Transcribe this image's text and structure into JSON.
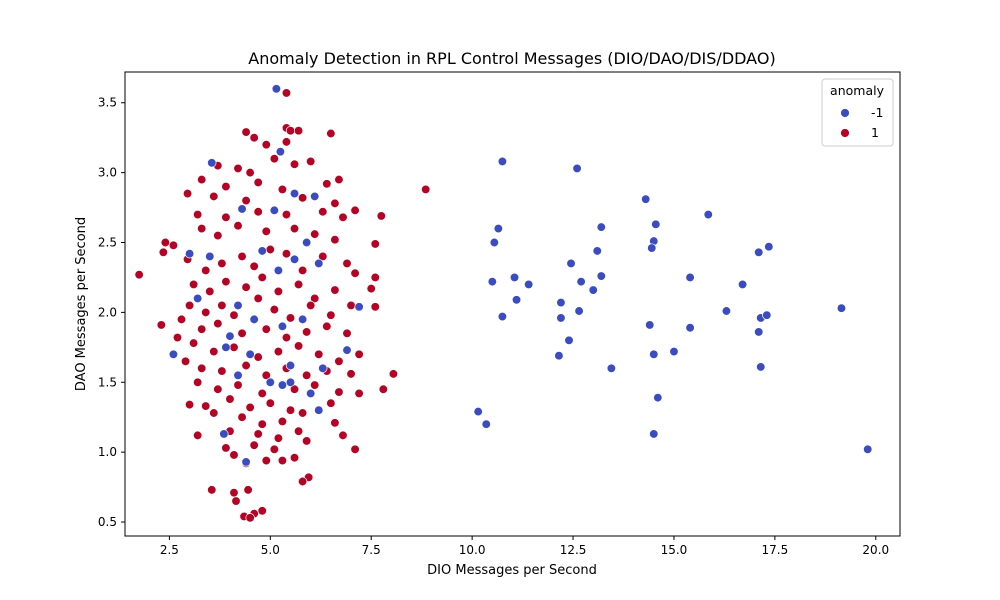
{
  "chart_data": {
    "type": "scatter",
    "title": "Anomaly Detection in RPL Control Messages (DIO/DAO/DIS/DDAO)",
    "xlabel": "DIO Messages per Second",
    "ylabel": "DAO Messages per Second",
    "xlim": [
      1.4,
      20.6
    ],
    "ylim": [
      0.4,
      3.72
    ],
    "xticks": [
      2.5,
      5.0,
      7.5,
      10.0,
      12.5,
      15.0,
      17.5,
      20.0
    ],
    "xtick_labels": [
      "2.5",
      "5.0",
      "7.5",
      "10.0",
      "12.5",
      "15.0",
      "17.5",
      "20.0"
    ],
    "yticks": [
      0.5,
      1.0,
      1.5,
      2.0,
      2.5,
      3.0,
      3.5
    ],
    "ytick_labels": [
      "0.5",
      "1.0",
      "1.5",
      "2.0",
      "2.5",
      "3.0",
      "3.5"
    ],
    "grid": false,
    "legend": {
      "title": "anomaly",
      "placement": "top-right"
    },
    "series": [
      {
        "name": "-1",
        "color": "#3b4cc0",
        "points": [
          [
            5.15,
            3.6
          ],
          [
            3.55,
            3.07
          ],
          [
            5.25,
            3.15
          ],
          [
            4.3,
            2.74
          ],
          [
            5.1,
            2.73
          ],
          [
            5.6,
            2.85
          ],
          [
            6.1,
            2.83
          ],
          [
            3.0,
            2.42
          ],
          [
            3.5,
            2.4
          ],
          [
            4.8,
            2.44
          ],
          [
            5.2,
            2.3
          ],
          [
            5.6,
            2.38
          ],
          [
            5.9,
            2.5
          ],
          [
            6.2,
            2.35
          ],
          [
            3.2,
            2.1
          ],
          [
            4.2,
            2.05
          ],
          [
            4.6,
            1.95
          ],
          [
            5.3,
            1.9
          ],
          [
            5.8,
            1.95
          ],
          [
            4.0,
            1.83
          ],
          [
            3.9,
            1.75
          ],
          [
            4.5,
            1.7
          ],
          [
            5.5,
            1.62
          ],
          [
            6.3,
            1.6
          ],
          [
            6.9,
            1.73
          ],
          [
            2.6,
            1.7
          ],
          [
            5.0,
            1.5
          ],
          [
            5.3,
            1.48
          ],
          [
            5.5,
            1.5
          ],
          [
            6.0,
            1.42
          ],
          [
            4.2,
            1.55
          ],
          [
            6.2,
            1.3
          ],
          [
            3.85,
            1.13
          ],
          [
            4.4,
            0.93
          ],
          [
            7.2,
            2.04
          ],
          [
            10.75,
            3.08
          ],
          [
            12.6,
            3.03
          ],
          [
            14.3,
            2.81
          ],
          [
            15.85,
            2.7
          ],
          [
            14.55,
            2.63
          ],
          [
            10.65,
            2.6
          ],
          [
            13.2,
            2.61
          ],
          [
            10.55,
            2.5
          ],
          [
            14.5,
            2.51
          ],
          [
            14.45,
            2.46
          ],
          [
            17.35,
            2.47
          ],
          [
            13.1,
            2.44
          ],
          [
            17.1,
            2.43
          ],
          [
            12.45,
            2.35
          ],
          [
            11.05,
            2.25
          ],
          [
            13.2,
            2.26
          ],
          [
            15.4,
            2.25
          ],
          [
            10.5,
            2.22
          ],
          [
            12.7,
            2.22
          ],
          [
            11.4,
            2.2
          ],
          [
            16.7,
            2.2
          ],
          [
            13.0,
            2.16
          ],
          [
            11.1,
            2.09
          ],
          [
            12.2,
            2.07
          ],
          [
            19.15,
            2.03
          ],
          [
            16.3,
            2.01
          ],
          [
            12.65,
            2.01
          ],
          [
            10.75,
            1.97
          ],
          [
            12.2,
            1.96
          ],
          [
            17.15,
            1.96
          ],
          [
            17.3,
            1.98
          ],
          [
            14.4,
            1.91
          ],
          [
            15.4,
            1.89
          ],
          [
            17.1,
            1.86
          ],
          [
            12.4,
            1.8
          ],
          [
            15.0,
            1.72
          ],
          [
            12.15,
            1.69
          ],
          [
            14.5,
            1.7
          ],
          [
            13.45,
            1.6
          ],
          [
            17.15,
            1.61
          ],
          [
            14.6,
            1.39
          ],
          [
            10.15,
            1.29
          ],
          [
            10.35,
            1.2
          ],
          [
            14.5,
            1.13
          ],
          [
            19.8,
            1.02
          ]
        ]
      },
      {
        "name": "1",
        "color": "#b40426",
        "points": [
          [
            5.4,
            3.57
          ],
          [
            5.4,
            3.32
          ],
          [
            4.4,
            3.29
          ],
          [
            6.5,
            3.28
          ],
          [
            4.6,
            3.25
          ],
          [
            5.5,
            3.3
          ],
          [
            5.7,
            3.3
          ],
          [
            4.9,
            3.2
          ],
          [
            5.4,
            3.22
          ],
          [
            5.1,
            3.1
          ],
          [
            3.7,
            3.05
          ],
          [
            4.2,
            3.03
          ],
          [
            4.5,
            3.0
          ],
          [
            5.6,
            3.06
          ],
          [
            6.0,
            3.08
          ],
          [
            3.3,
            2.95
          ],
          [
            3.9,
            2.9
          ],
          [
            4.7,
            2.93
          ],
          [
            5.3,
            2.88
          ],
          [
            6.4,
            2.92
          ],
          [
            6.7,
            2.95
          ],
          [
            8.85,
            2.88
          ],
          [
            2.95,
            2.85
          ],
          [
            3.6,
            2.83
          ],
          [
            4.4,
            2.8
          ],
          [
            5.8,
            2.82
          ],
          [
            6.6,
            2.78
          ],
          [
            7.1,
            2.73
          ],
          [
            7.75,
            2.69
          ],
          [
            3.2,
            2.7
          ],
          [
            3.9,
            2.68
          ],
          [
            4.7,
            2.72
          ],
          [
            5.4,
            2.7
          ],
          [
            6.3,
            2.72
          ],
          [
            6.8,
            2.68
          ],
          [
            2.4,
            2.5
          ],
          [
            2.6,
            2.48
          ],
          [
            3.3,
            2.6
          ],
          [
            3.7,
            2.55
          ],
          [
            4.2,
            2.62
          ],
          [
            4.9,
            2.58
          ],
          [
            5.6,
            2.6
          ],
          [
            6.1,
            2.56
          ],
          [
            6.6,
            2.52
          ],
          [
            7.6,
            2.49
          ],
          [
            2.35,
            2.43
          ],
          [
            2.95,
            2.38
          ],
          [
            3.4,
            2.3
          ],
          [
            3.8,
            2.35
          ],
          [
            4.3,
            2.4
          ],
          [
            4.6,
            2.33
          ],
          [
            5.0,
            2.45
          ],
          [
            5.4,
            2.42
          ],
          [
            5.8,
            2.3
          ],
          [
            6.3,
            2.4
          ],
          [
            6.9,
            2.35
          ],
          [
            7.1,
            2.28
          ],
          [
            1.75,
            2.27
          ],
          [
            3.1,
            2.2
          ],
          [
            3.5,
            2.15
          ],
          [
            3.9,
            2.22
          ],
          [
            4.4,
            2.18
          ],
          [
            4.8,
            2.25
          ],
          [
            5.2,
            2.15
          ],
          [
            5.7,
            2.2
          ],
          [
            6.1,
            2.1
          ],
          [
            6.6,
            2.16
          ],
          [
            7.5,
            2.17
          ],
          [
            7.6,
            2.25
          ],
          [
            3.0,
            2.05
          ],
          [
            3.4,
            2.0
          ],
          [
            3.8,
            2.05
          ],
          [
            4.1,
            1.98
          ],
          [
            4.7,
            2.1
          ],
          [
            5.1,
            2.02
          ],
          [
            5.5,
            1.96
          ],
          [
            6.0,
            2.05
          ],
          [
            6.5,
            1.98
          ],
          [
            7.0,
            2.05
          ],
          [
            7.6,
            2.04
          ],
          [
            2.3,
            1.91
          ],
          [
            2.8,
            1.95
          ],
          [
            3.3,
            1.88
          ],
          [
            3.7,
            1.92
          ],
          [
            4.3,
            1.85
          ],
          [
            4.9,
            1.88
          ],
          [
            5.4,
            1.82
          ],
          [
            5.9,
            1.86
          ],
          [
            6.4,
            1.9
          ],
          [
            6.9,
            1.85
          ],
          [
            2.7,
            1.82
          ],
          [
            3.1,
            1.78
          ],
          [
            3.6,
            1.72
          ],
          [
            4.1,
            1.75
          ],
          [
            4.7,
            1.68
          ],
          [
            5.2,
            1.72
          ],
          [
            5.7,
            1.76
          ],
          [
            6.2,
            1.7
          ],
          [
            6.7,
            1.65
          ],
          [
            7.2,
            1.7
          ],
          [
            2.9,
            1.65
          ],
          [
            3.3,
            1.6
          ],
          [
            3.8,
            1.58
          ],
          [
            4.4,
            1.62
          ],
          [
            4.9,
            1.55
          ],
          [
            5.4,
            1.6
          ],
          [
            5.9,
            1.55
          ],
          [
            6.4,
            1.58
          ],
          [
            7.0,
            1.56
          ],
          [
            8.05,
            1.56
          ],
          [
            3.2,
            1.5
          ],
          [
            3.7,
            1.45
          ],
          [
            4.2,
            1.48
          ],
          [
            4.8,
            1.42
          ],
          [
            5.6,
            1.45
          ],
          [
            6.1,
            1.48
          ],
          [
            6.7,
            1.43
          ],
          [
            7.2,
            1.42
          ],
          [
            7.8,
            1.45
          ],
          [
            3.0,
            1.34
          ],
          [
            3.4,
            1.33
          ],
          [
            4.0,
            1.38
          ],
          [
            4.5,
            1.32
          ],
          [
            5.0,
            1.35
          ],
          [
            5.5,
            1.3
          ],
          [
            6.5,
            1.35
          ],
          [
            3.6,
            1.28
          ],
          [
            4.3,
            1.25
          ],
          [
            4.8,
            1.2
          ],
          [
            5.3,
            1.22
          ],
          [
            5.8,
            1.28
          ],
          [
            6.6,
            1.21
          ],
          [
            3.2,
            1.12
          ],
          [
            4.0,
            1.15
          ],
          [
            4.7,
            1.13
          ],
          [
            5.2,
            1.1
          ],
          [
            5.7,
            1.15
          ],
          [
            6.8,
            1.12
          ],
          [
            3.9,
            1.03
          ],
          [
            4.6,
            1.05
          ],
          [
            5.1,
            1.02
          ],
          [
            5.9,
            1.08
          ],
          [
            7.1,
            1.02
          ],
          [
            4.1,
            0.98
          ],
          [
            4.9,
            0.94
          ],
          [
            5.3,
            0.94
          ],
          [
            5.6,
            0.96
          ],
          [
            4.4,
            0.92
          ],
          [
            5.95,
            0.82
          ],
          [
            5.8,
            0.79
          ],
          [
            3.55,
            0.73
          ],
          [
            4.1,
            0.71
          ],
          [
            4.45,
            0.73
          ],
          [
            4.15,
            0.65
          ],
          [
            4.8,
            0.58
          ],
          [
            4.6,
            0.56
          ],
          [
            4.35,
            0.54
          ],
          [
            4.5,
            0.53
          ]
        ]
      }
    ]
  }
}
